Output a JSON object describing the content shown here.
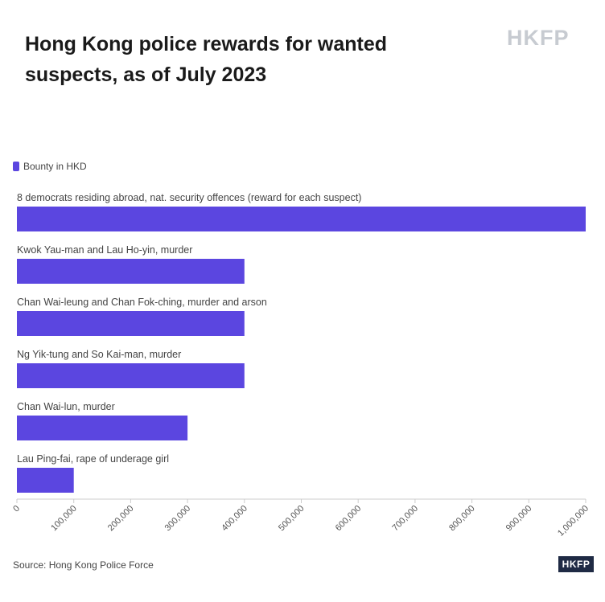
{
  "header": {
    "title": "Hong Kong police rewards for wanted suspects, as of July 2023",
    "logo": "HKFP"
  },
  "footer": {
    "source": "Source: Hong Kong Police Force",
    "logo": "HKFP"
  },
  "colors": {
    "bar": "#5b46e0",
    "axis": "#cccccc",
    "label": "#444444"
  },
  "chart_data": {
    "type": "bar",
    "orientation": "horizontal",
    "title": "Hong Kong police rewards for wanted suspects, as of July 2023",
    "legend": "top-left",
    "series": [
      {
        "name": "Bounty in HKD",
        "values": [
          1000000,
          400000,
          400000,
          400000,
          300000,
          100000
        ]
      }
    ],
    "categories": [
      "8 democrats residing abroad, nat. security offences (reward for each suspect)",
      "Kwok Yau-man and Lau Ho-yin, murder",
      "Chan Wai-leung and Chan Fok-ching, murder and arson",
      "Ng Yik-tung and So Kai-man, murder",
      "Chan Wai-lun, murder",
      "Lau Ping-fai, rape of underage girl"
    ],
    "xlim": [
      0,
      1000000
    ],
    "xticks": [
      "0",
      "100,000",
      "200,000",
      "300,000",
      "400,000",
      "500,000",
      "600,000",
      "700,000",
      "800,000",
      "900,000",
      "1,000,000"
    ],
    "xlabel": "",
    "ylabel": "",
    "grid": false
  }
}
